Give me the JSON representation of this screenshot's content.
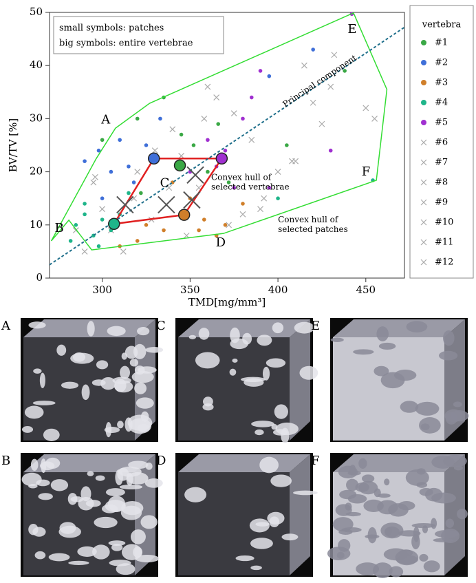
{
  "chart_data": {
    "type": "scatter",
    "xlabel": "TMD[mg/mm³]",
    "ylabel": "BV/TV [%]",
    "xlim": [
      270,
      472
    ],
    "ylim": [
      0,
      50
    ],
    "xticks": [
      300,
      350,
      400,
      450
    ],
    "yticks": [
      0,
      10,
      20,
      30,
      40,
      50
    ],
    "legend_title": "vertebra",
    "notes": [
      "small symbols: patches",
      "big symbols: entire vertebrae"
    ],
    "series": [
      {
        "name": "#1",
        "color": "#3aa845",
        "marker": "dot",
        "x": [
          300,
          322,
          335,
          352,
          360,
          366,
          370,
          405,
          438,
          372,
          320,
          345
        ],
        "y": [
          26,
          16,
          34,
          25,
          20,
          29,
          23,
          25,
          39,
          18,
          30,
          27
        ],
        "whole": [
          344.2,
          21.2
        ]
      },
      {
        "name": "#2",
        "color": "#3f6fd8",
        "marker": "dot",
        "x": [
          290,
          298,
          305,
          310,
          318,
          325,
          333,
          345,
          420,
          395,
          300,
          315
        ],
        "y": [
          22,
          24,
          20,
          26,
          18,
          25,
          30,
          21,
          43,
          38,
          15,
          21
        ],
        "whole": [
          329.4,
          22.5
        ]
      },
      {
        "name": "#3",
        "color": "#d07f2a",
        "marker": "dot",
        "x": [
          310,
          325,
          335,
          345,
          350,
          358,
          365,
          370,
          380,
          340,
          320,
          355
        ],
        "y": [
          6,
          10,
          9,
          12,
          15,
          11,
          8,
          10,
          14,
          18,
          7,
          9
        ],
        "whole": [
          346.6,
          11.9
        ]
      },
      {
        "name": "#4",
        "color": "#1fb58a",
        "marker": "dot",
        "x": [
          282,
          285,
          290,
          295,
          300,
          305,
          310,
          290,
          298,
          400,
          454,
          315
        ],
        "y": [
          7,
          10,
          12,
          8,
          11,
          9,
          12,
          14,
          6,
          15,
          18.4,
          16
        ],
        "whole": [
          306.7,
          10.2
        ]
      },
      {
        "name": "#5",
        "color": "#a030d0",
        "marker": "dot",
        "x": [
          360,
          370,
          375,
          385,
          390,
          395,
          430,
          442,
          365,
          380,
          350
        ],
        "y": [
          26,
          24,
          17,
          34,
          39,
          17,
          24,
          49.7,
          21,
          30,
          20
        ],
        "whole": [
          368,
          22.5
        ]
      },
      {
        "name": "#6",
        "color": "#aaaaaa",
        "marker": "cross",
        "x": [
          295,
          330,
          360,
          410,
          432
        ],
        "y": [
          18,
          24,
          36,
          22,
          42
        ],
        "whole": [
          313,
          13.8
        ]
      },
      {
        "name": "#7",
        "color": "#aaaaaa",
        "marker": "cross",
        "x": [
          300,
          340,
          375,
          415,
          455
        ],
        "y": [
          13,
          28,
          31,
          40,
          30
        ],
        "whole": [
          336.5,
          13.8
        ]
      },
      {
        "name": "#8",
        "color": "#aaaaaa",
        "marker": "cross",
        "x": [
          290,
          320,
          355,
          385,
          420
        ],
        "y": [
          5,
          20,
          17,
          26,
          33
        ],
        "whole": [
          351,
          14.7
        ]
      },
      {
        "name": "#9",
        "color": "#aaaaaa",
        "marker": "cross",
        "x": [
          305,
          345,
          380,
          400,
          450
        ],
        "y": [
          9,
          23,
          12,
          20,
          32
        ],
        "whole": [
          353,
          19.4
        ]
      },
      {
        "name": "#10",
        "color": "#aaaaaa",
        "marker": "cross",
        "x": [
          312,
          338,
          372,
          392,
          430
        ],
        "y": [
          5,
          17,
          10,
          15,
          36
        ]
      },
      {
        "name": "#11",
        "color": "#aaaaaa",
        "marker": "cross",
        "x": [
          285,
          318,
          348,
          365,
          408
        ],
        "y": [
          9,
          15,
          8,
          34,
          22
        ]
      },
      {
        "name": "#12",
        "color": "#aaaaaa",
        "marker": "cross",
        "x": [
          296,
          328,
          358,
          390,
          425
        ],
        "y": [
          19,
          11,
          30,
          13,
          29
        ]
      }
    ],
    "hulls": [
      {
        "label": "Convex hull of selected patches",
        "color": "#33dd33",
        "x": [
          296.6,
          307.5,
          327,
          443,
          462,
          456,
          369,
          294,
          281,
          271
        ],
        "y": [
          22.5,
          28.2,
          32.9,
          49.9,
          35.5,
          18.4,
          8.4,
          5.3,
          10.9,
          7.0
        ],
        "label_at": [
          400,
          11
        ]
      },
      {
        "label": "Convex hull of selected vertebrae",
        "color": "#e02020",
        "x": [
          329.4,
          368,
          346.6,
          306.7
        ],
        "y": [
          22.5,
          22.5,
          11.9,
          10.2
        ],
        "label_at": [
          362,
          19
        ]
      }
    ],
    "principal_component": {
      "label": "Principal component",
      "color": "#1f6f8b",
      "x": [
        270,
        472
      ],
      "y": [
        2.5,
        47.2
      ]
    },
    "picked": [
      {
        "label": "A",
        "x": 307.5,
        "y": 28.2
      },
      {
        "label": "B",
        "x": 281,
        "y": 10.9
      },
      {
        "label": "C",
        "x": 344.2,
        "y": 21.2
      },
      {
        "label": "D",
        "x": 369,
        "y": 8.4
      },
      {
        "label": "E",
        "x": 443,
        "y": 49.9
      },
      {
        "label": "F",
        "x": 454,
        "y": 18.4
      }
    ]
  },
  "panels": {
    "labels": [
      "A",
      "C",
      "E",
      "B",
      "D",
      "F"
    ]
  }
}
